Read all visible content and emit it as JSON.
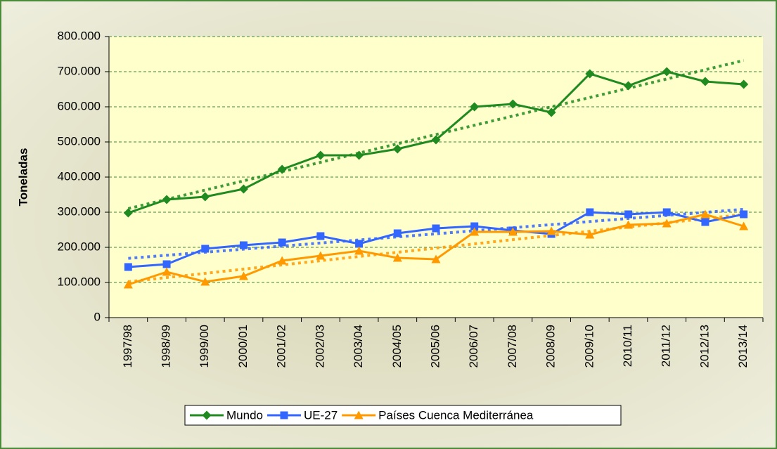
{
  "chart_data": {
    "type": "line",
    "y_label": "Toneladas",
    "categories": [
      "1997/98",
      "1998/99",
      "1999/00",
      "2000/01",
      "2001/02",
      "2002/03",
      "2003/04",
      "2004/05",
      "2005/06",
      "2006/07",
      "2007/08",
      "2008/09",
      "2009/10",
      "2010/11",
      "2011/12",
      "2012/13",
      "2013/14"
    ],
    "series": [
      {
        "name": "Mundo",
        "color": "#1f8a1f",
        "marker": "diamond",
        "values": [
          298000,
          336000,
          344000,
          366000,
          422000,
          462000,
          462000,
          480000,
          506000,
          600000,
          608000,
          584000,
          694000,
          660000,
          700000,
          672000,
          664000
        ]
      },
      {
        "name": "UE-27",
        "color": "#3366ff",
        "marker": "square",
        "values": [
          144000,
          152000,
          196000,
          206000,
          214000,
          232000,
          210000,
          240000,
          254000,
          260000,
          248000,
          238000,
          300000,
          294000,
          300000,
          272000,
          294000
        ]
      },
      {
        "name": "Países Cuenca Mediterránea",
        "color": "#ff9900",
        "marker": "triangle",
        "values": [
          94000,
          130000,
          102000,
          118000,
          162000,
          176000,
          190000,
          170000,
          166000,
          244000,
          244000,
          246000,
          236000,
          264000,
          268000,
          294000,
          260000
        ]
      }
    ],
    "ylim": [
      0,
      800000
    ],
    "yticks": [
      0,
      {
        "value": 100000,
        "label": "100.000"
      },
      {
        "value": 200000,
        "label": "200.000"
      },
      {
        "value": 300000,
        "label": "300.000"
      },
      {
        "value": 400000,
        "label": "400.000"
      },
      {
        "value": 500000,
        "label": "500.000"
      },
      {
        "value": 600000,
        "label": "600.000"
      },
      {
        "value": 700000,
        "label": "700.000"
      },
      {
        "value": 800000,
        "label": "800.000"
      }
    ],
    "grid": true,
    "trendline": true,
    "legend": "bottom"
  }
}
